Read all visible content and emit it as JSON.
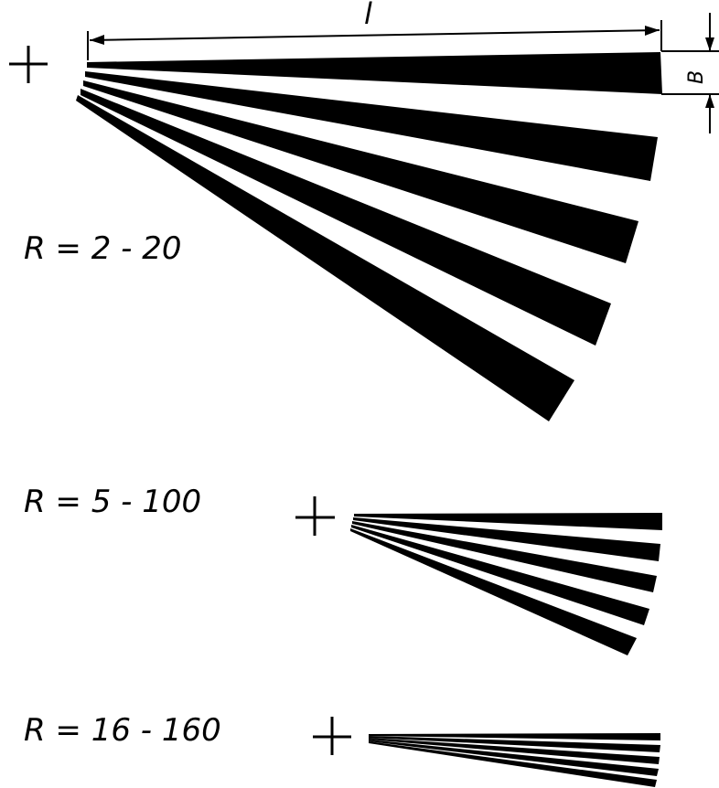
{
  "labels": {
    "group1_range": "R = 2 - 20",
    "group2_range": "R = 5 - 100",
    "group3_range": "R = 16 - 160",
    "length_symbol": "l",
    "width_symbol": "B"
  },
  "colors": {
    "ink": "#000000",
    "paper": "#ffffff"
  }
}
